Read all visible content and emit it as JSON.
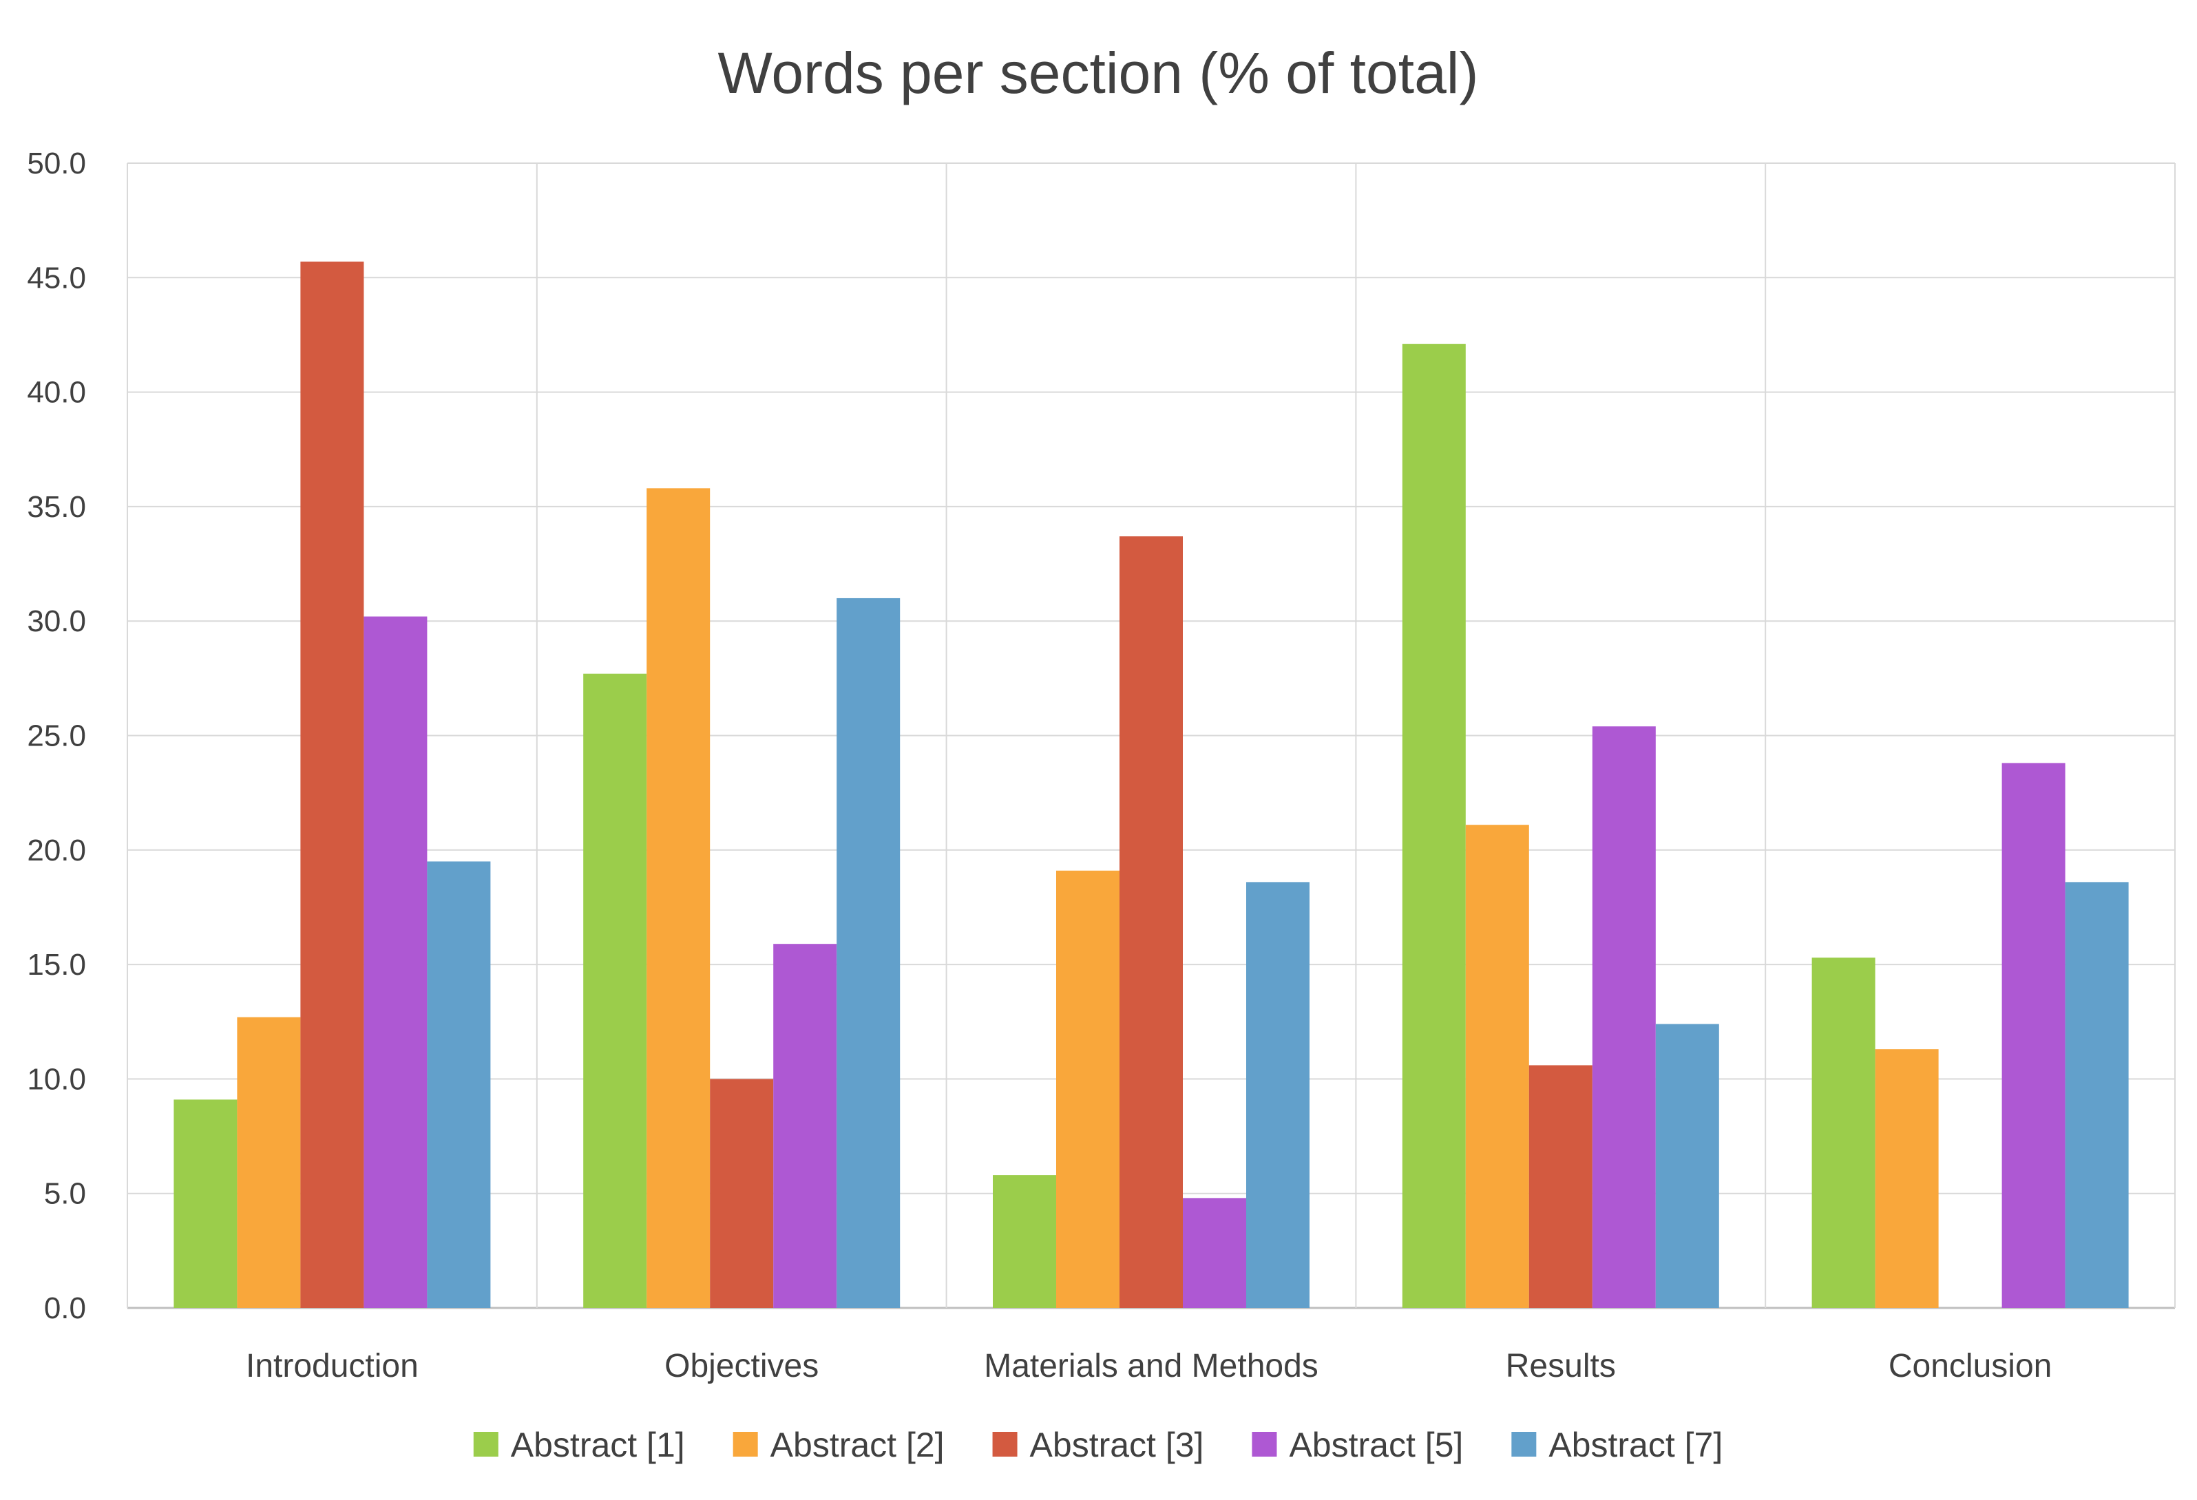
{
  "chart_data": {
    "type": "bar",
    "title": "Words per section (% of total)",
    "xlabel": "",
    "ylabel": "",
    "ylim": [
      0,
      50
    ],
    "yticks": [
      "0.0",
      "5.0",
      "10.0",
      "15.0",
      "20.0",
      "25.0",
      "30.0",
      "35.0",
      "40.0",
      "45.0",
      "50.0"
    ],
    "categories": [
      "Introduction",
      "Objectives",
      "Materials and Methods",
      "Results",
      "Conclusion"
    ],
    "grid": true,
    "legend_position": "bottom",
    "series": [
      {
        "name": "Abstract [1]",
        "color": "#9BCD4B",
        "values": [
          9.1,
          27.7,
          5.8,
          42.1,
          15.3
        ]
      },
      {
        "name": "Abstract [2]",
        "color": "#F9A73B",
        "values": [
          12.7,
          35.8,
          19.1,
          21.1,
          11.3
        ]
      },
      {
        "name": "Abstract [3]",
        "color": "#D35A40",
        "values": [
          45.7,
          10.0,
          33.7,
          10.6,
          0
        ]
      },
      {
        "name": "Abstract [5]",
        "color": "#AE58D3",
        "values": [
          30.2,
          15.9,
          4.8,
          25.4,
          23.8
        ]
      },
      {
        "name": "Abstract [7]",
        "color": "#62A0CB",
        "values": [
          19.5,
          31.0,
          18.6,
          12.4,
          18.6
        ]
      }
    ]
  }
}
